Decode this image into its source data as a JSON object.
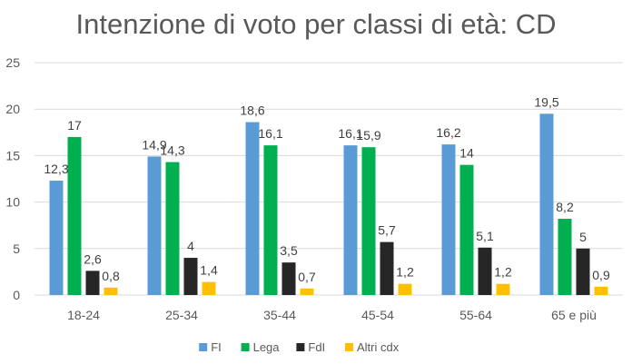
{
  "chart_data": {
    "type": "bar",
    "title": "Intenzione di voto per classi di età: CD",
    "xlabel": "",
    "ylabel": "",
    "ylim": [
      0,
      25
    ],
    "yticks": [
      0,
      5,
      10,
      15,
      20,
      25
    ],
    "grid": true,
    "legend_position": "bottom",
    "categories": [
      "18-24",
      "25-34",
      "35-44",
      "45-54",
      "55-64",
      "65 e più"
    ],
    "series": [
      {
        "name": "FI",
        "color": "#5b9bd5",
        "values": [
          12.3,
          14.9,
          18.6,
          16.1,
          16.2,
          19.5
        ],
        "labels": [
          "12,3",
          "14,9",
          "18,6",
          "16,1",
          "16,2",
          "19,5"
        ]
      },
      {
        "name": "Lega",
        "color": "#00b050",
        "values": [
          17,
          14.3,
          16.1,
          15.9,
          14,
          8.2
        ],
        "labels": [
          "17",
          "14,3",
          "16,1",
          "15,9",
          "14",
          "8,2"
        ]
      },
      {
        "name": "FdI",
        "color": "#262626",
        "values": [
          2.6,
          4,
          3.5,
          5.7,
          5.1,
          5
        ],
        "labels": [
          "2,6",
          "4",
          "3,5",
          "5,7",
          "5,1",
          "5"
        ]
      },
      {
        "name": "Altri cdx",
        "color": "#ffc000",
        "values": [
          0.8,
          1.4,
          0.7,
          1.2,
          1.2,
          0.9
        ],
        "labels": [
          "0,8",
          "1,4",
          "0,7",
          "1,2",
          "1,2",
          "0,9"
        ]
      }
    ]
  }
}
